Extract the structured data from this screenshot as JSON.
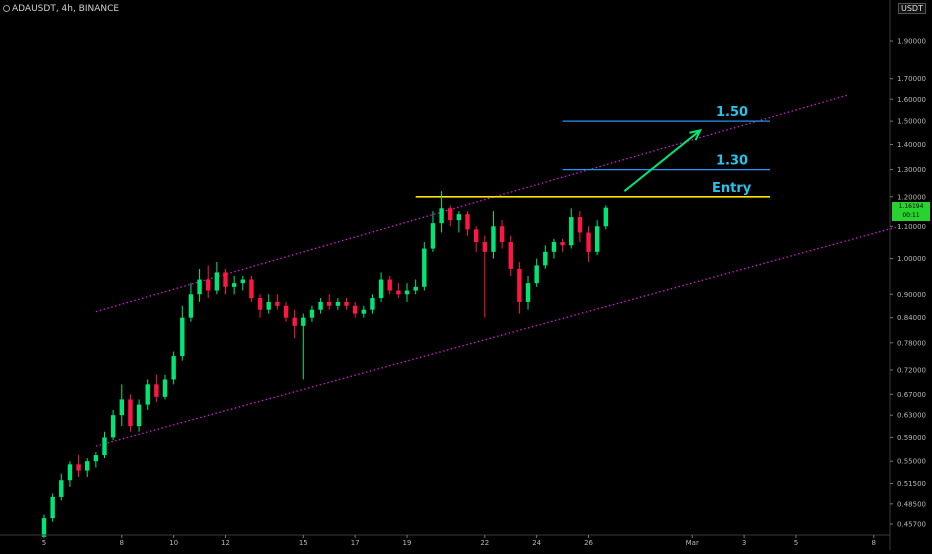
{
  "header": {
    "symbol_line": "ADAUSDT, 4h, BINANCE",
    "currency": "USDT"
  },
  "price_axis": {
    "ticks": [
      "1.90000",
      "1.70000",
      "1.60000",
      "1.50000",
      "1.40000",
      "1.30000",
      "1.20000",
      "1.10000",
      "1.00000",
      "0.90000",
      "0.84000",
      "0.78000",
      "0.72000",
      "0.67000",
      "0.63000",
      "0.59000",
      "0.55000",
      "0.51500",
      "0.48500",
      "0.45700"
    ],
    "last_price": "1.16194",
    "countdown": "00:11",
    "last_price_color": "#26d62e"
  },
  "time_axis": {
    "labels": [
      "5",
      "8",
      "10",
      "12",
      "15",
      "17",
      "19",
      "22",
      "24",
      "26",
      "Mar",
      "3",
      "5",
      "8"
    ]
  },
  "colors": {
    "up": "#00e676",
    "down": "#ff1744",
    "channel": "#d21ad2",
    "entry": "#ffe400",
    "target": "#2196f3",
    "arrow": "#00e676",
    "label": "#27c3e8"
  },
  "chart_data": {
    "type": "candlestick",
    "symbol": "ADAUSDT",
    "interval": "4h",
    "exchange": "BINANCE",
    "y_scale": "log",
    "ylim": [
      0.45,
      2.0
    ],
    "x_range": [
      "Feb 5",
      "Mar 9"
    ],
    "levels": [
      {
        "label": "Entry",
        "value": 1.2
      },
      {
        "label": "1.30",
        "value": 1.3
      },
      {
        "label": "1.50",
        "value": 1.5
      }
    ],
    "channel": {
      "upper": [
        {
          "date": "Feb 7",
          "value": 0.855
        },
        {
          "date": "Mar 7",
          "value": 1.62
        }
      ],
      "lower": [
        {
          "date": "Feb 7",
          "value": 0.575
        },
        {
          "date": "Mar 9",
          "value": 1.1
        }
      ]
    },
    "arrow": {
      "from": {
        "date": "Feb 28",
        "value": 1.22
      },
      "to": {
        "date": "Mar 1",
        "value": 1.46
      }
    },
    "candles": [
      [
        "Feb 5 00:00",
        0.44,
        0.47,
        0.438,
        0.465
      ],
      [
        "Feb 5 08:00",
        0.465,
        0.5,
        0.46,
        0.495
      ],
      [
        "Feb 5 16:00",
        0.495,
        0.53,
        0.49,
        0.52
      ],
      [
        "Feb 6 00:00",
        0.52,
        0.55,
        0.51,
        0.545
      ],
      [
        "Feb 6 08:00",
        0.545,
        0.56,
        0.525,
        0.535
      ],
      [
        "Feb 6 16:00",
        0.535,
        0.555,
        0.525,
        0.55
      ],
      [
        "Feb 7 00:00",
        0.55,
        0.565,
        0.54,
        0.56
      ],
      [
        "Feb 7 08:00",
        0.56,
        0.6,
        0.555,
        0.59
      ],
      [
        "Feb 7 16:00",
        0.59,
        0.64,
        0.585,
        0.63
      ],
      [
        "Feb 8 00:00",
        0.63,
        0.69,
        0.61,
        0.66
      ],
      [
        "Feb 8 08:00",
        0.66,
        0.67,
        0.6,
        0.61
      ],
      [
        "Feb 8 16:00",
        0.61,
        0.66,
        0.6,
        0.65
      ],
      [
        "Feb 9 00:00",
        0.65,
        0.7,
        0.64,
        0.69
      ],
      [
        "Feb 9 08:00",
        0.69,
        0.71,
        0.655,
        0.665
      ],
      [
        "Feb 9 16:00",
        0.665,
        0.71,
        0.66,
        0.7
      ],
      [
        "Feb 10 00:00",
        0.7,
        0.76,
        0.69,
        0.75
      ],
      [
        "Feb 10 08:00",
        0.75,
        0.87,
        0.74,
        0.84
      ],
      [
        "Feb 10 16:00",
        0.84,
        0.93,
        0.83,
        0.9
      ],
      [
        "Feb 11 00:00",
        0.9,
        0.97,
        0.88,
        0.94
      ],
      [
        "Feb 11 08:00",
        0.94,
        0.98,
        0.89,
        0.91
      ],
      [
        "Feb 11 16:00",
        0.91,
        0.99,
        0.9,
        0.96
      ],
      [
        "Feb 12 00:00",
        0.96,
        0.97,
        0.9,
        0.92
      ],
      [
        "Feb 12 08:00",
        0.92,
        0.95,
        0.9,
        0.93
      ],
      [
        "Feb 12 16:00",
        0.93,
        0.95,
        0.91,
        0.94
      ],
      [
        "Feb 13 00:00",
        0.94,
        0.95,
        0.88,
        0.89
      ],
      [
        "Feb 13 08:00",
        0.89,
        0.9,
        0.84,
        0.86
      ],
      [
        "Feb 13 16:00",
        0.86,
        0.9,
        0.85,
        0.88
      ],
      [
        "Feb 14 00:00",
        0.88,
        0.9,
        0.86,
        0.87
      ],
      [
        "Feb 14 08:00",
        0.87,
        0.88,
        0.83,
        0.84
      ],
      [
        "Feb 14 16:00",
        0.84,
        0.86,
        0.79,
        0.82
      ],
      [
        "Feb 15 00:00",
        0.82,
        0.85,
        0.7,
        0.84
      ],
      [
        "Feb 15 08:00",
        0.84,
        0.87,
        0.83,
        0.86
      ],
      [
        "Feb 15 16:00",
        0.86,
        0.89,
        0.85,
        0.88
      ],
      [
        "Feb 16 00:00",
        0.88,
        0.9,
        0.86,
        0.87
      ],
      [
        "Feb 16 08:00",
        0.87,
        0.89,
        0.86,
        0.88
      ],
      [
        "Feb 16 16:00",
        0.88,
        0.89,
        0.86,
        0.87
      ],
      [
        "Feb 17 00:00",
        0.87,
        0.88,
        0.84,
        0.85
      ],
      [
        "Feb 17 08:00",
        0.85,
        0.87,
        0.84,
        0.86
      ],
      [
        "Feb 17 16:00",
        0.86,
        0.9,
        0.85,
        0.89
      ],
      [
        "Feb 18 00:00",
        0.89,
        0.96,
        0.88,
        0.94
      ],
      [
        "Feb 18 08:00",
        0.94,
        0.95,
        0.9,
        0.91
      ],
      [
        "Feb 18 16:00",
        0.91,
        0.93,
        0.89,
        0.9
      ],
      [
        "Feb 19 00:00",
        0.9,
        0.93,
        0.88,
        0.91
      ],
      [
        "Feb 19 08:00",
        0.91,
        0.94,
        0.9,
        0.92
      ],
      [
        "Feb 19 16:00",
        0.92,
        1.05,
        0.91,
        1.03
      ],
      [
        "Feb 20 00:00",
        1.03,
        1.15,
        1.02,
        1.11
      ],
      [
        "Feb 20 08:00",
        1.11,
        1.22,
        1.08,
        1.16
      ],
      [
        "Feb 20 16:00",
        1.16,
        1.17,
        1.1,
        1.12
      ],
      [
        "Feb 21 00:00",
        1.12,
        1.15,
        1.08,
        1.14
      ],
      [
        "Feb 21 08:00",
        1.14,
        1.15,
        1.07,
        1.09
      ],
      [
        "Feb 21 16:00",
        1.09,
        1.1,
        1.02,
        1.05
      ],
      [
        "Feb 22 00:00",
        1.05,
        1.07,
        0.84,
        1.02
      ],
      [
        "Feb 22 08:00",
        1.02,
        1.15,
        1.0,
        1.1
      ],
      [
        "Feb 22 16:00",
        1.1,
        1.12,
        1.03,
        1.05
      ],
      [
        "Feb 23 00:00",
        1.05,
        1.07,
        0.95,
        0.97
      ],
      [
        "Feb 23 08:00",
        0.97,
        0.99,
        0.85,
        0.88
      ],
      [
        "Feb 23 16:00",
        0.88,
        0.95,
        0.86,
        0.93
      ],
      [
        "Feb 24 00:00",
        0.93,
        1.0,
        0.92,
        0.98
      ],
      [
        "Feb 24 08:00",
        0.98,
        1.04,
        0.97,
        1.02
      ],
      [
        "Feb 24 16:00",
        1.02,
        1.06,
        1.0,
        1.05
      ],
      [
        "Feb 25 00:00",
        1.05,
        1.06,
        1.02,
        1.04
      ],
      [
        "Feb 25 08:00",
        1.04,
        1.16,
        1.03,
        1.13
      ],
      [
        "Feb 25 16:00",
        1.13,
        1.15,
        1.05,
        1.08
      ],
      [
        "Feb 26 00:00",
        1.08,
        1.1,
        0.99,
        1.02
      ],
      [
        "Feb 26 08:00",
        1.02,
        1.12,
        1.01,
        1.1
      ],
      [
        "Feb 26 16:00",
        1.1,
        1.17,
        1.09,
        1.162
      ]
    ]
  }
}
